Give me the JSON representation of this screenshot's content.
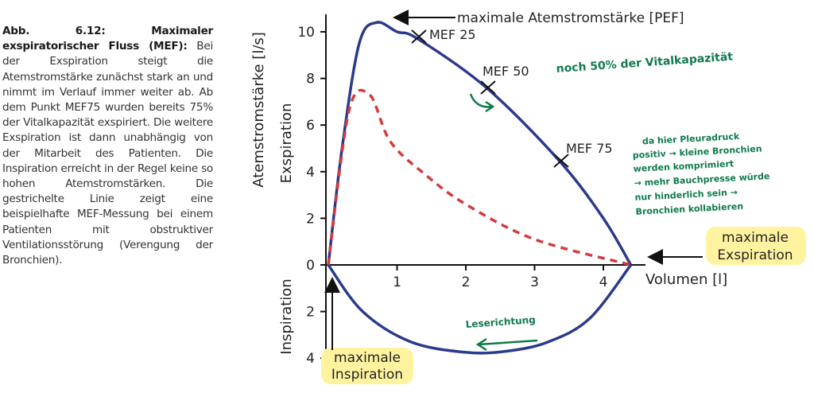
{
  "caption": {
    "lead": "Abb. 6.12: Maximaler exspiratorischer Fluss (MEF):",
    "body": "Bei der Exspiration steigt die Atemstromstärke zunächst stark an und nimmt im Verlauf immer weiter ab. Ab dem Punkt MEF75 wurden bereits 75% der Vitalkapazität exspiriert. Die weitere Exspiration ist dann unabhängig von der Mitarbeit des Patienten. Die Inspiration erreicht in der Regel keine so hohen Atemstromstärken. Die gestrichelte Linie zeigt eine beispielhafte MEF-Messung bei einem Patienten mit obstruktiver Ventilationsstörung (Verengung der Bronchien)."
  },
  "axes": {
    "y_label": "Atemstromstärke [l/s]",
    "y_upper_label": "Exspiration",
    "y_lower_label": "Inspiration",
    "x_label": "Volumen [l]",
    "y_ticks_up": [
      "0",
      "2",
      "4",
      "6",
      "8",
      "10"
    ],
    "y_ticks_down": [
      "2",
      "4"
    ],
    "x_ticks": [
      "1",
      "2",
      "3",
      "4"
    ]
  },
  "labels": {
    "pef": "maximale Atemstromstärke [PEF]",
    "mef25": "MEF 25",
    "mef50": "MEF 50",
    "mef75": "MEF 75",
    "max_exp_line1": "maximale",
    "max_exp_line2": "Exspiration",
    "max_insp_line1": "maximale",
    "max_insp_line2": "Inspiration"
  },
  "annotations": {
    "note_mef50": "noch 50% der Vitalkapazität",
    "note_mef75": [
      "da hier Pleuradruck",
      "positiv → kleine Bronchien",
      "werden komprimiert",
      "→ mehr Bauchpresse würde",
      "nur hinderlich sein →",
      "Bronchien kollabieren"
    ],
    "reading_direction": "Leserichtung"
  },
  "chart_data": {
    "type": "line",
    "xlabel": "Volumen [l]",
    "ylabel": "Atemstromstärke [l/s]",
    "xlim": [
      0,
      4.6
    ],
    "ylim": [
      -4,
      10.5
    ],
    "series": [
      {
        "style": "solid",
        "x": [
          0,
          0.2,
          0.45,
          0.7,
          1.0,
          1.3,
          2.3,
          3.35,
          4.0,
          4.4
        ],
        "y": [
          0,
          5,
          9.5,
          10.4,
          10.0,
          9.7,
          7.6,
          4.5,
          2.0,
          0
        ]
      },
      {
        "style": "dashed",
        "x": [
          0,
          0.3,
          0.6,
          0.9,
          1.4,
          2.0,
          3.0,
          4.4
        ],
        "y": [
          0,
          6.6,
          7.3,
          5.3,
          3.9,
          2.6,
          1.1,
          0
        ]
      },
      {
        "style": "solid",
        "x": [
          0,
          0.5,
          1.2,
          2.0,
          2.6,
          3.2,
          3.8,
          4.4
        ],
        "y": [
          0,
          -2.0,
          -3.3,
          -3.75,
          -3.7,
          -3.3,
          -2.3,
          0
        ]
      }
    ],
    "points": [
      {
        "name": "PEF",
        "x": 0.75,
        "y": 10.4
      },
      {
        "name": "MEF 25",
        "x": 1.3,
        "y": 9.7
      },
      {
        "name": "MEF 50",
        "x": 2.3,
        "y": 7.6
      },
      {
        "name": "MEF 75",
        "x": 3.35,
        "y": 4.5
      }
    ]
  },
  "colors": {
    "curve": "#2b3a8c",
    "dashed": "#d63a3a",
    "annotation": "#0f7a4c",
    "highlight": "#fff3a0"
  }
}
